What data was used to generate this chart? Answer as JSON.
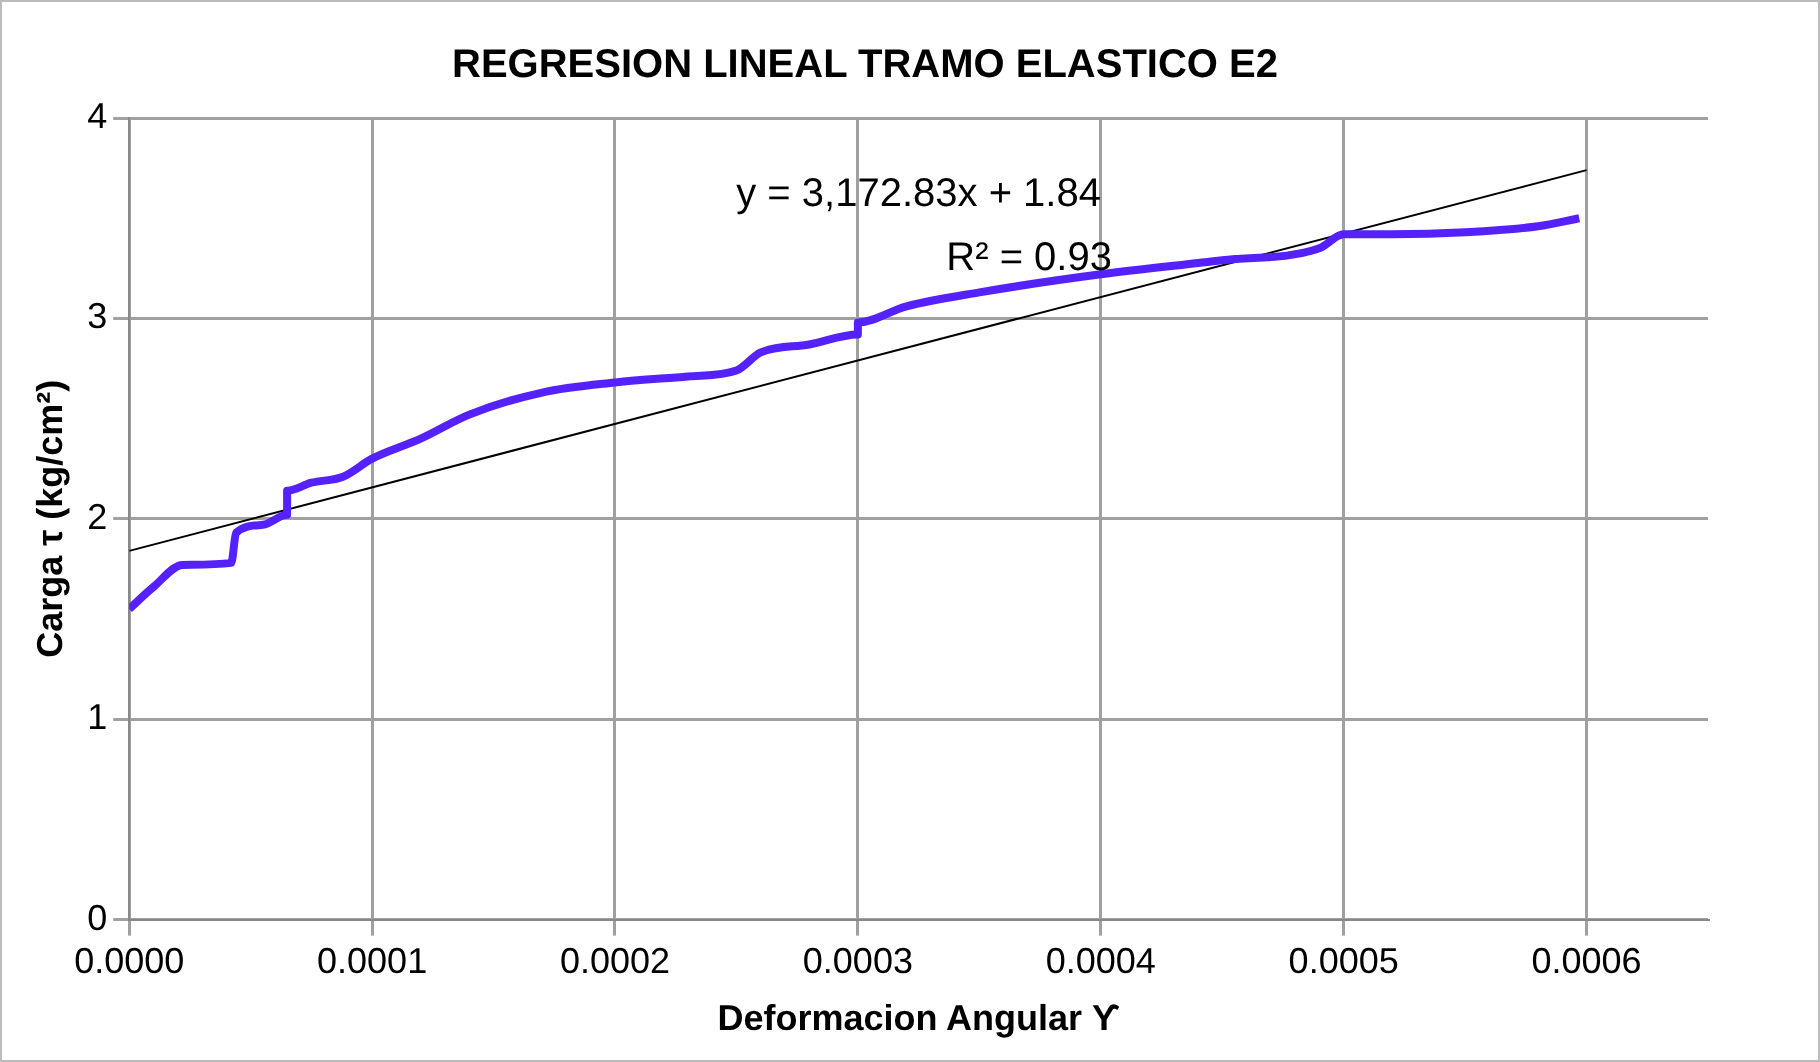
{
  "chart_data": {
    "type": "line",
    "title": "REGRESION LINEAL TRAMO ELASTICO E2",
    "xlabel": "Deformacion Angular ϒ",
    "ylabel": "Carga τ (kg/cm²)",
    "annotations": [
      "y = 3,172.83x + 1.84",
      "R² = 0.93"
    ],
    "series": [
      {
        "color": "#5522ff",
        "x": [
          0,
          1e-05,
          2.2e-05,
          4.2e-05,
          4.4e-05,
          5.5e-05,
          6.5e-05,
          6.5e-05,
          7.5e-05,
          8.8e-05,
          0.0001,
          0.00012,
          0.00014,
          0.00017,
          0.0002,
          0.00023,
          0.00025,
          0.00026,
          0.00028,
          0.0003,
          0.0003,
          0.00032,
          0.00035,
          0.0004,
          0.00045,
          0.00049,
          0.0005,
          0.00052,
          0.00055,
          0.00058,
          0.000597
        ],
        "values": [
          1.55,
          1.66,
          1.77,
          1.78,
          1.93,
          1.97,
          2.02,
          2.14,
          2.18,
          2.21,
          2.3,
          2.4,
          2.52,
          2.63,
          2.68,
          2.71,
          2.74,
          2.83,
          2.87,
          2.92,
          2.98,
          3.06,
          3.13,
          3.22,
          3.29,
          3.35,
          3.42,
          3.42,
          3.43,
          3.46,
          3.5
        ]
      },
      {
        "color": "#000000",
        "x": [
          0,
          0.0006
        ],
        "values": [
          1.84,
          3.74
        ]
      }
    ],
    "xlim": [
      0,
      0.00065
    ],
    "ylim": [
      0,
      4
    ],
    "xticks": [
      {
        "value": 0,
        "label": "0.0000"
      },
      {
        "value": 0.0001,
        "label": "0.0001"
      },
      {
        "value": 0.0002,
        "label": "0.0002"
      },
      {
        "value": 0.0003,
        "label": "0.0003"
      },
      {
        "value": 0.0004,
        "label": "0.0004"
      },
      {
        "value": 0.0005,
        "label": "0.0005"
      },
      {
        "value": 0.0006,
        "label": "0.0006"
      }
    ],
    "yticks": [
      0,
      1,
      2,
      3,
      4
    ],
    "grid": true,
    "legend": false,
    "marker": "none",
    "line_style": "solid"
  }
}
